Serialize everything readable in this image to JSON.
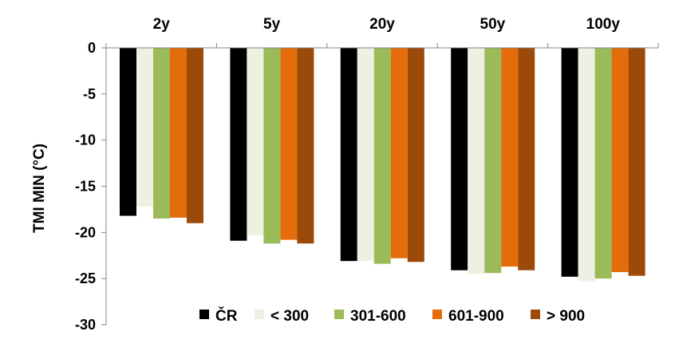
{
  "chart_data": {
    "type": "bar",
    "title": "",
    "xlabel": "",
    "ylabel": "TMI MIN (°C)",
    "ylim": [
      -30,
      0
    ],
    "yticks": [
      0,
      -5,
      -10,
      -15,
      -20,
      -25,
      -30
    ],
    "categories": [
      "2y",
      "5y",
      "20y",
      "50y",
      "100y"
    ],
    "category_axis_position": "top",
    "legend_position": "bottom-inside",
    "grid": false,
    "series": [
      {
        "name": "ČR",
        "color": "#000000",
        "values": [
          -18.2,
          -20.9,
          -23.1,
          -24.1,
          -24.8
        ]
      },
      {
        "name": "< 300",
        "color": "#eef1e2",
        "values": [
          -17.2,
          -20.3,
          -23.1,
          -24.5,
          -25.3
        ]
      },
      {
        "name": "301-600",
        "color": "#9bbb59",
        "values": [
          -18.5,
          -21.2,
          -23.4,
          -24.4,
          -25.0
        ]
      },
      {
        "name": "601-900",
        "color": "#e46c0a",
        "values": [
          -18.4,
          -20.8,
          -22.8,
          -23.7,
          -24.3
        ]
      },
      {
        "name": "> 900",
        "color": "#9c4a0a",
        "values": [
          -19.0,
          -21.2,
          -23.2,
          -24.1,
          -24.7
        ]
      }
    ]
  }
}
